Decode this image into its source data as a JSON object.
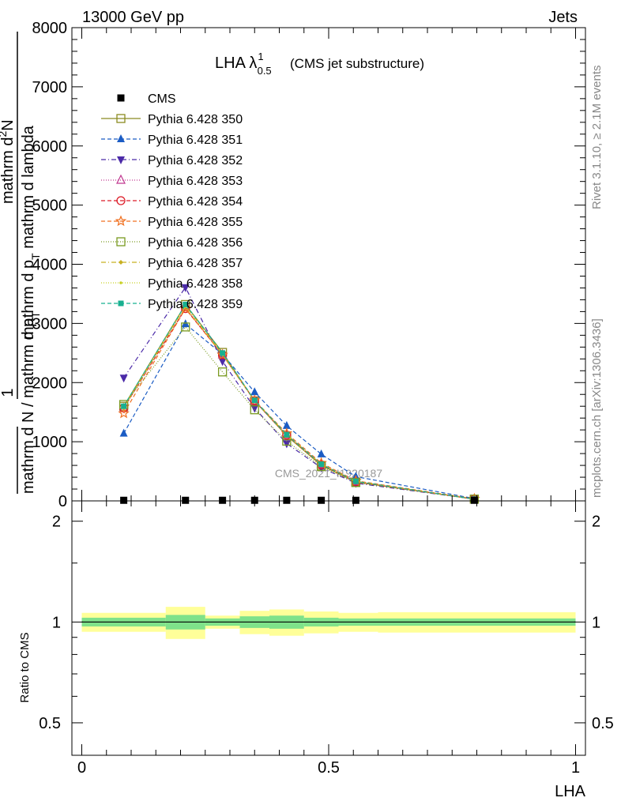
{
  "header": {
    "left": "13000 GeV pp",
    "right": "Jets"
  },
  "title": {
    "main": "LHA λ",
    "sup": "1",
    "sub": "0.5",
    "suffix": "(CMS jet substructure)"
  },
  "side_labels": {
    "rivet": "Rivet 3.1.10, ≥ 2.1M events",
    "mcplots": "mcplots.cern.ch [arXiv:1306.3436]"
  },
  "watermark": "CMS_2021_I1920187",
  "ylabel_main": {
    "frac_one": "1",
    "den_part1": "mathrm d N / mathrm d p",
    "den_sub1": "T",
    "num": "mathrm d",
    "num_sup": "2",
    "num_part2": "N",
    "den2_part1": "mathrm d p",
    "den2_sub": "T",
    "den2_part2": " mathrm d lambda"
  },
  "ylabel_ratio": "Ratio to CMS",
  "xlabel": "LHA",
  "chart_data": {
    "type": "line",
    "x_title": "LHA",
    "main": {
      "ylim": [
        0,
        8000
      ],
      "yticks": [
        0,
        1000,
        2000,
        3000,
        4000,
        5000,
        6000,
        7000,
        8000
      ],
      "ytick_labels": [
        "0",
        "1000",
        "2000",
        "3000",
        "4000",
        "5000",
        "6000",
        "7000",
        "8000"
      ]
    },
    "ratio": {
      "ylim": [
        0.4,
        2.3
      ],
      "log": true,
      "yticks": [
        0.5,
        1,
        2
      ],
      "ytick_labels": [
        "0.5",
        "1",
        "2"
      ]
    },
    "xlim": [
      -0.02,
      1.02
    ],
    "xticks": [
      0,
      0.5,
      1
    ],
    "xtick_labels": [
      "0",
      "0.5",
      "1"
    ],
    "x": [
      0.085,
      0.21,
      0.285,
      0.35,
      0.415,
      0.485,
      0.555,
      0.795
    ],
    "data": {
      "name": "CMS",
      "values": [
        10,
        10,
        10,
        10,
        10,
        10,
        10,
        10
      ]
    },
    "ratio_band": {
      "edges": [
        0.0,
        0.17,
        0.25,
        0.32,
        0.38,
        0.45,
        0.52,
        0.6,
        1.0
      ],
      "inner": [
        0.03,
        0.05,
        0.025,
        0.04,
        0.045,
        0.03,
        0.025,
        0.025
      ],
      "outer": [
        0.065,
        0.11,
        0.045,
        0.08,
        0.09,
        0.075,
        0.065,
        0.07
      ]
    },
    "series": [
      {
        "name": "Pythia 6.428 350",
        "color": "#8b8b20",
        "dash": "",
        "marker": "square-open",
        "values": [
          1600,
          3320,
          2510,
          1690,
          1100,
          600,
          320,
          30
        ]
      },
      {
        "name": "Pythia 6.428 351",
        "color": "#1b5cc4",
        "dash": "5,3",
        "marker": "triangle-up-filled",
        "values": [
          1140,
          2990,
          2480,
          1840,
          1270,
          790,
          410,
          40
        ]
      },
      {
        "name": "Pythia 6.428 352",
        "color": "#4b2aa8",
        "dash": "6,3,1,3",
        "marker": "triangle-down-filled",
        "values": [
          2080,
          3610,
          2360,
          1570,
          970,
          560,
          300,
          30
        ]
      },
      {
        "name": "Pythia 6.428 353",
        "color": "#c03890",
        "dash": "1,2",
        "marker": "triangle-up-open",
        "values": [
          1560,
          3270,
          2470,
          1690,
          1110,
          620,
          330,
          30
        ]
      },
      {
        "name": "Pythia 6.428 354",
        "color": "#dd1c28",
        "dash": "5,3",
        "marker": "circle-open",
        "values": [
          1570,
          3250,
          2470,
          1690,
          1110,
          610,
          320,
          30
        ]
      },
      {
        "name": "Pythia 6.428 355",
        "color": "#f07020",
        "dash": "5,3",
        "marker": "star-open",
        "values": [
          1480,
          3250,
          2470,
          1700,
          1140,
          640,
          340,
          35
        ]
      },
      {
        "name": "Pythia 6.428 356",
        "color": "#7a9a20",
        "dash": "1,2",
        "marker": "square-open",
        "values": [
          1630,
          2940,
          2180,
          1540,
          1010,
          580,
          310,
          30
        ]
      },
      {
        "name": "Pythia 6.428 357",
        "color": "#c8b020",
        "dash": "6,3,1,3",
        "marker": "diamond-small",
        "values": [
          1580,
          3300,
          2480,
          1700,
          1120,
          620,
          330,
          30
        ]
      },
      {
        "name": "Pythia 6.428 358",
        "color": "#c8d020",
        "dash": "1,2",
        "marker": "dot",
        "values": [
          1570,
          3280,
          2470,
          1690,
          1110,
          610,
          325,
          30
        ]
      },
      {
        "name": "Pythia 6.428 359",
        "color": "#18b090",
        "dash": "5,3",
        "marker": "square-filled",
        "values": [
          1600,
          3320,
          2500,
          1700,
          1120,
          620,
          330,
          30
        ]
      }
    ]
  }
}
